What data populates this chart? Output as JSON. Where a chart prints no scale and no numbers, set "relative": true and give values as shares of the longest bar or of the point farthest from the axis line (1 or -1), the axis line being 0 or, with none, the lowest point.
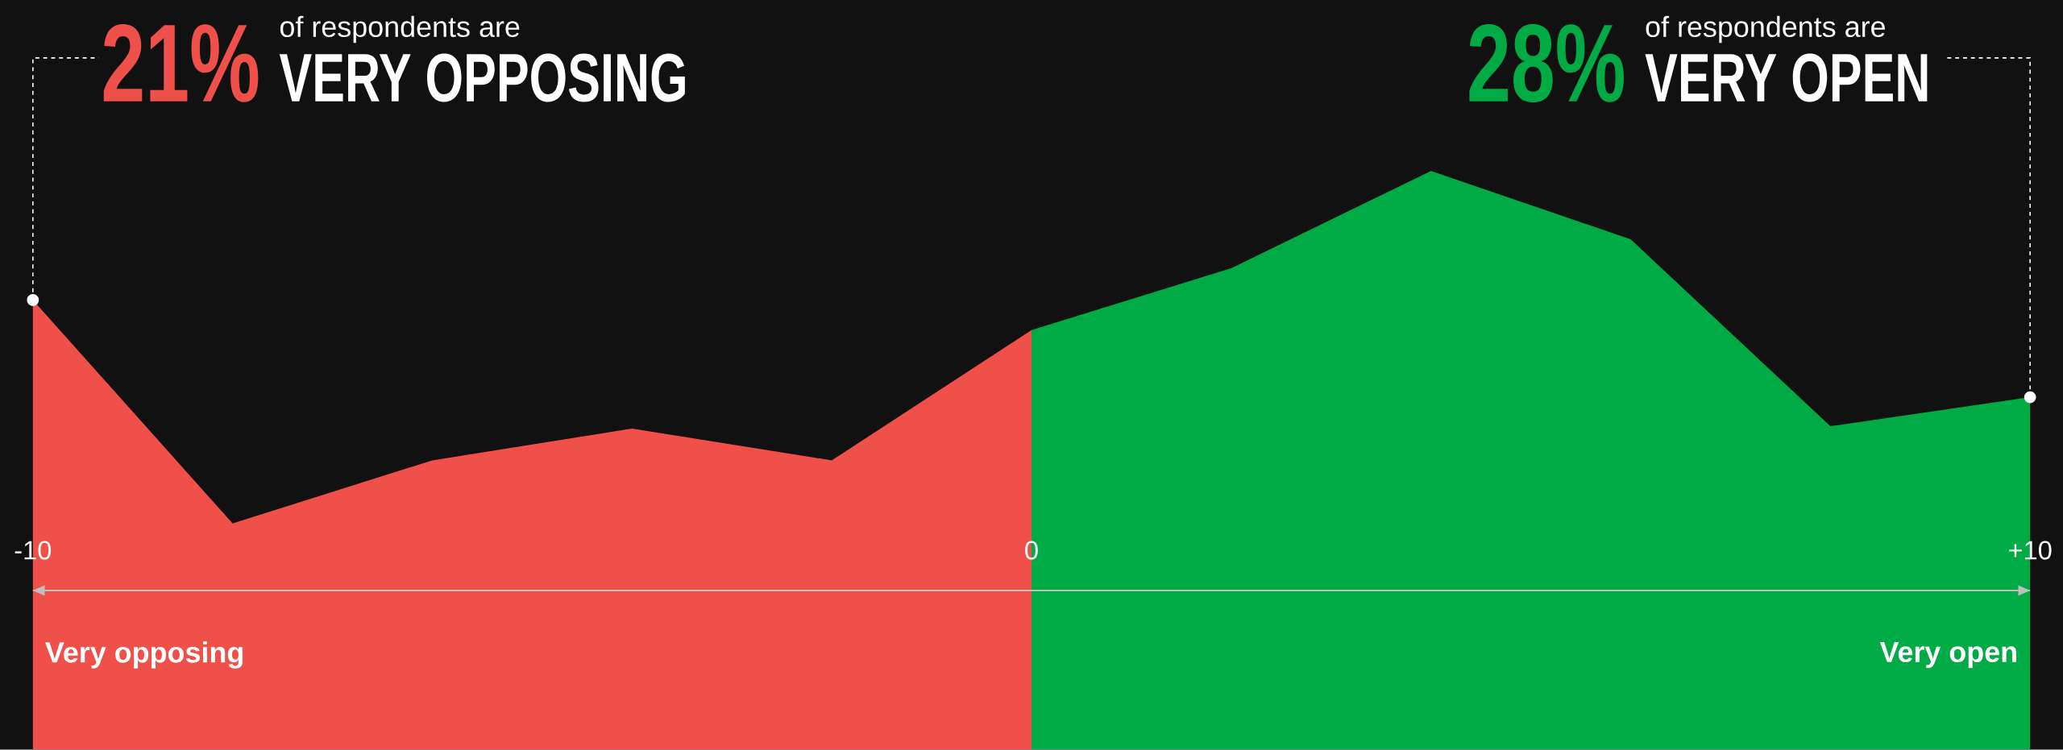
{
  "chart_data": {
    "type": "area",
    "relative": true,
    "xlim": [
      -10,
      10
    ],
    "xticks": [
      -10,
      0,
      {
        "value": 10,
        "label": "+10"
      }
    ],
    "series": [
      {
        "color": "#f0504a",
        "x": [
          -10,
          -8,
          -6,
          -4,
          -2,
          0
        ],
        "values": [
          0.777,
          0.391,
          0.5,
          0.555,
          0.5,
          0.725
        ]
      },
      {
        "color": "#00aa44",
        "x": [
          0,
          2,
          4,
          6,
          8,
          10
        ],
        "values": [
          0.725,
          0.832,
          1,
          0.882,
          0.559,
          0.609
        ]
      }
    ],
    "annotations": [
      {
        "text": "21%",
        "x": -10,
        "y": 0.777
      },
      "of respondents are",
      "VERY OPPOSING",
      "28%",
      "of respondents are",
      "VERY OPEN",
      "Very opposing",
      "Very open"
    ]
  }
}
